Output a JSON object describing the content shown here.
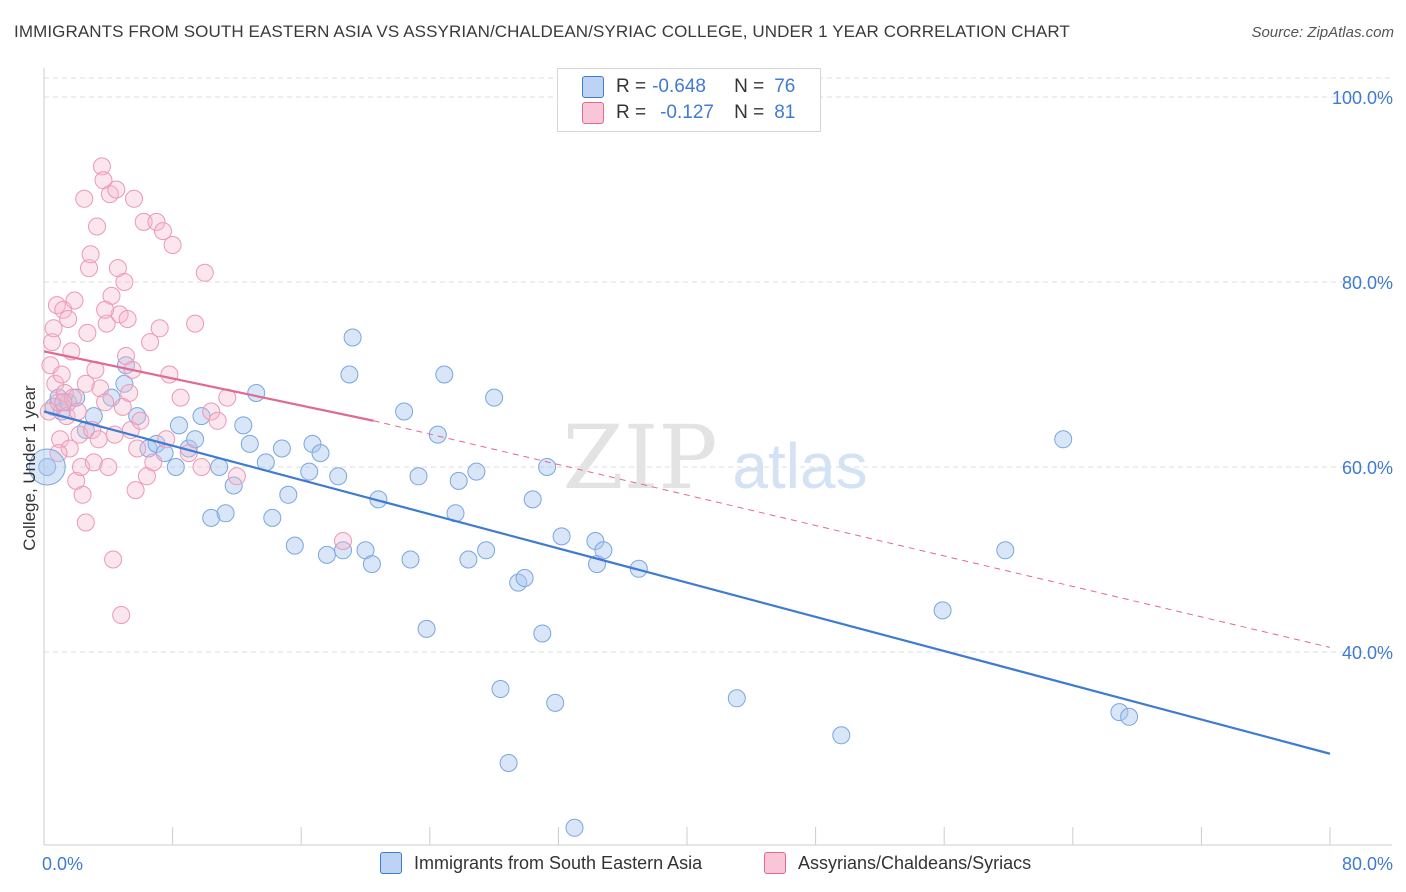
{
  "title": "IMMIGRANTS FROM SOUTH EASTERN ASIA VS ASSYRIAN/CHALDEAN/SYRIAC COLLEGE, UNDER 1 YEAR CORRELATION CHART",
  "source": "Source: ZipAtlas.com",
  "watermark": {
    "zip": "ZIP",
    "atlas": "atlas"
  },
  "colors": {
    "blue": "#3f7bd1",
    "blue_fill": "#aac8f0",
    "pink": "#e06a92",
    "pink_fill": "#f5b8cc",
    "grid": "#dddddd",
    "tick_label": "#3f7bd1"
  },
  "legend_top": {
    "rows": [
      {
        "r_label": "R =",
        "r_value": "-0.648",
        "n_label": "N =",
        "n_value": "76"
      },
      {
        "r_label": "R =",
        "r_value": "-0.127",
        "n_label": "N =",
        "n_value": "81"
      }
    ]
  },
  "legend_bottom": {
    "items": [
      {
        "label": "Immigrants from South Eastern Asia"
      },
      {
        "label": "Assyrians/Chaldeans/Syriacs"
      }
    ]
  },
  "chart_data": {
    "type": "scatter",
    "xlabel": "",
    "ylabel": "College, Under 1 year",
    "xlim": [
      0,
      80
    ],
    "ylim": [
      20,
      104
    ],
    "x_tick_labels": [
      "0.0%",
      "80.0%"
    ],
    "y_tick_labels": [
      "100.0%",
      "80.0%",
      "60.0%",
      "40.0%"
    ],
    "y_ticks": [
      100,
      80,
      60,
      40
    ],
    "grid": true,
    "legend_position": "top-center",
    "series": [
      {
        "name": "Immigrants from South Eastern Asia",
        "color": "#3f7bd1",
        "trend": {
          "x": [
            0,
            80
          ],
          "y": [
            66.0,
            29.0
          ]
        },
        "points": [
          [
            0.2,
            60.0
          ],
          [
            0.6,
            66.5
          ],
          [
            0.9,
            67.5
          ],
          [
            1.1,
            66.0
          ],
          [
            1.5,
            67.0
          ],
          [
            2.0,
            67.5
          ],
          [
            2.6,
            64.0
          ],
          [
            3.1,
            65.5
          ],
          [
            4.2,
            67.5
          ],
          [
            5.1,
            71.0
          ],
          [
            5.0,
            69.0
          ],
          [
            5.8,
            65.5
          ],
          [
            6.5,
            62.0
          ],
          [
            7.0,
            62.5
          ],
          [
            7.5,
            61.5
          ],
          [
            8.2,
            60.0
          ],
          [
            8.4,
            64.5
          ],
          [
            9.0,
            62.0
          ],
          [
            9.4,
            63.0
          ],
          [
            9.8,
            65.5
          ],
          [
            10.4,
            54.5
          ],
          [
            10.9,
            60.0
          ],
          [
            11.3,
            55.0
          ],
          [
            11.8,
            58.0
          ],
          [
            12.4,
            64.5
          ],
          [
            12.8,
            62.5
          ],
          [
            13.2,
            68.0
          ],
          [
            13.8,
            60.5
          ],
          [
            14.2,
            54.5
          ],
          [
            14.8,
            62.0
          ],
          [
            15.2,
            57.0
          ],
          [
            15.6,
            51.5
          ],
          [
            16.5,
            59.5
          ],
          [
            16.7,
            62.5
          ],
          [
            17.2,
            61.5
          ],
          [
            17.6,
            50.5
          ],
          [
            18.3,
            59.0
          ],
          [
            18.6,
            51.0
          ],
          [
            19.0,
            70.0
          ],
          [
            19.2,
            74.0
          ],
          [
            20.0,
            51.0
          ],
          [
            20.4,
            49.5
          ],
          [
            20.8,
            56.5
          ],
          [
            22.4,
            66.0
          ],
          [
            22.8,
            50.0
          ],
          [
            23.3,
            59.0
          ],
          [
            23.8,
            42.5
          ],
          [
            24.5,
            63.5
          ],
          [
            24.9,
            70.0
          ],
          [
            25.6,
            55.0
          ],
          [
            25.8,
            58.5
          ],
          [
            26.4,
            50.0
          ],
          [
            26.9,
            59.5
          ],
          [
            27.5,
            51.0
          ],
          [
            28.0,
            67.5
          ],
          [
            28.4,
            36.0
          ],
          [
            28.9,
            28.0
          ],
          [
            29.5,
            47.5
          ],
          [
            29.9,
            48.0
          ],
          [
            30.4,
            56.5
          ],
          [
            31.0,
            42.0
          ],
          [
            31.3,
            60.0
          ],
          [
            31.8,
            34.5
          ],
          [
            32.2,
            52.5
          ],
          [
            33.0,
            21.0
          ],
          [
            34.3,
            52.0
          ],
          [
            34.4,
            49.5
          ],
          [
            34.8,
            51.0
          ],
          [
            37.0,
            49.0
          ],
          [
            43.1,
            35.0
          ],
          [
            49.6,
            31.0
          ],
          [
            55.9,
            44.5
          ],
          [
            59.8,
            51.0
          ],
          [
            63.4,
            63.0
          ],
          [
            66.9,
            33.5
          ],
          [
            67.5,
            33.0
          ]
        ]
      },
      {
        "name": "Assyrians/Chaldeans/Syriacs",
        "color": "#e06a92",
        "trend": {
          "x": [
            0,
            20.5
          ],
          "y": [
            72.5,
            65.0
          ],
          "dash_x": [
            20.5,
            80
          ],
          "dash_y": [
            65.0,
            40.5
          ]
        },
        "points": [
          [
            0.3,
            66.0
          ],
          [
            0.4,
            71.0
          ],
          [
            0.5,
            73.5
          ],
          [
            0.6,
            75.0
          ],
          [
            0.7,
            69.0
          ],
          [
            0.8,
            77.5
          ],
          [
            0.9,
            67.0
          ],
          [
            1.0,
            63.0
          ],
          [
            1.1,
            70.0
          ],
          [
            1.2,
            77.0
          ],
          [
            1.3,
            68.0
          ],
          [
            1.4,
            65.5
          ],
          [
            1.5,
            76.0
          ],
          [
            1.6,
            62.0
          ],
          [
            1.7,
            72.5
          ],
          [
            1.8,
            67.5
          ],
          [
            1.9,
            78.0
          ],
          [
            2.0,
            58.5
          ],
          [
            2.1,
            66.0
          ],
          [
            2.2,
            63.5
          ],
          [
            2.3,
            60.0
          ],
          [
            2.4,
            57.0
          ],
          [
            2.5,
            89.0
          ],
          [
            2.6,
            54.0
          ],
          [
            2.7,
            74.5
          ],
          [
            2.8,
            81.5
          ],
          [
            2.9,
            83.0
          ],
          [
            3.0,
            64.0
          ],
          [
            3.1,
            60.5
          ],
          [
            3.2,
            70.5
          ],
          [
            3.3,
            86.0
          ],
          [
            3.4,
            63.0
          ],
          [
            3.5,
            68.5
          ],
          [
            3.6,
            92.5
          ],
          [
            3.7,
            91.0
          ],
          [
            3.8,
            67.0
          ],
          [
            3.9,
            75.5
          ],
          [
            4.0,
            60.0
          ],
          [
            4.1,
            89.5
          ],
          [
            4.2,
            78.5
          ],
          [
            4.3,
            50.0
          ],
          [
            4.4,
            63.5
          ],
          [
            4.5,
            90.0
          ],
          [
            4.6,
            81.5
          ],
          [
            4.7,
            76.5
          ],
          [
            4.8,
            44.0
          ],
          [
            4.9,
            66.5
          ],
          [
            5.0,
            80.0
          ],
          [
            5.1,
            72.0
          ],
          [
            5.2,
            76.0
          ],
          [
            5.3,
            68.0
          ],
          [
            5.4,
            64.0
          ],
          [
            5.5,
            70.5
          ],
          [
            5.6,
            89.0
          ],
          [
            5.7,
            57.5
          ],
          [
            5.8,
            62.0
          ],
          [
            6.0,
            65.0
          ],
          [
            6.2,
            86.5
          ],
          [
            6.4,
            59.0
          ],
          [
            6.6,
            73.5
          ],
          [
            6.8,
            60.5
          ],
          [
            7.0,
            86.5
          ],
          [
            7.2,
            75.0
          ],
          [
            7.4,
            85.5
          ],
          [
            7.6,
            63.0
          ],
          [
            7.8,
            70.0
          ],
          [
            8.0,
            84.0
          ],
          [
            8.5,
            67.5
          ],
          [
            9.0,
            61.5
          ],
          [
            9.4,
            75.5
          ],
          [
            9.8,
            60.0
          ],
          [
            10.0,
            81.0
          ],
          [
            10.4,
            66.0
          ],
          [
            10.8,
            65.0
          ],
          [
            11.4,
            67.5
          ],
          [
            12.0,
            59.0
          ],
          [
            18.6,
            52.0
          ],
          [
            1.2,
            67.0
          ],
          [
            2.6,
            69.0
          ],
          [
            3.8,
            77.0
          ],
          [
            0.9,
            61.5
          ]
        ]
      }
    ]
  }
}
